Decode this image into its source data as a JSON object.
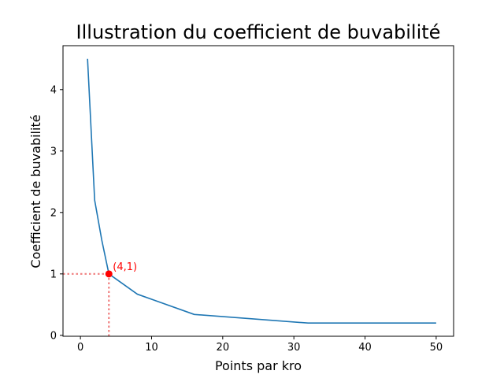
{
  "chart_data": {
    "type": "line",
    "title": "Illustration du coefficient de buvabilité",
    "xlabel": "Points par kro",
    "ylabel": "Coefficient de buvabilité",
    "xlim": [
      -2.45,
      52.45
    ],
    "ylim": [
      -0.015,
      4.715
    ],
    "xticks": [
      0,
      10,
      20,
      30,
      40,
      50
    ],
    "yticks": [
      0,
      1,
      2,
      3,
      4
    ],
    "grid": false,
    "series": [
      {
        "color": "#1f77b4",
        "x": [
          1,
          2,
          3,
          4,
          8,
          16,
          32,
          50
        ],
        "y": [
          4.5,
          2.2,
          1.55,
          1.0,
          0.67,
          0.34,
          0.2,
          0.2
        ]
      }
    ],
    "highlight": {
      "x": 4,
      "y": 1,
      "label": "(4,1)",
      "color": "#ff0000",
      "guide_color": "#f08080"
    }
  }
}
